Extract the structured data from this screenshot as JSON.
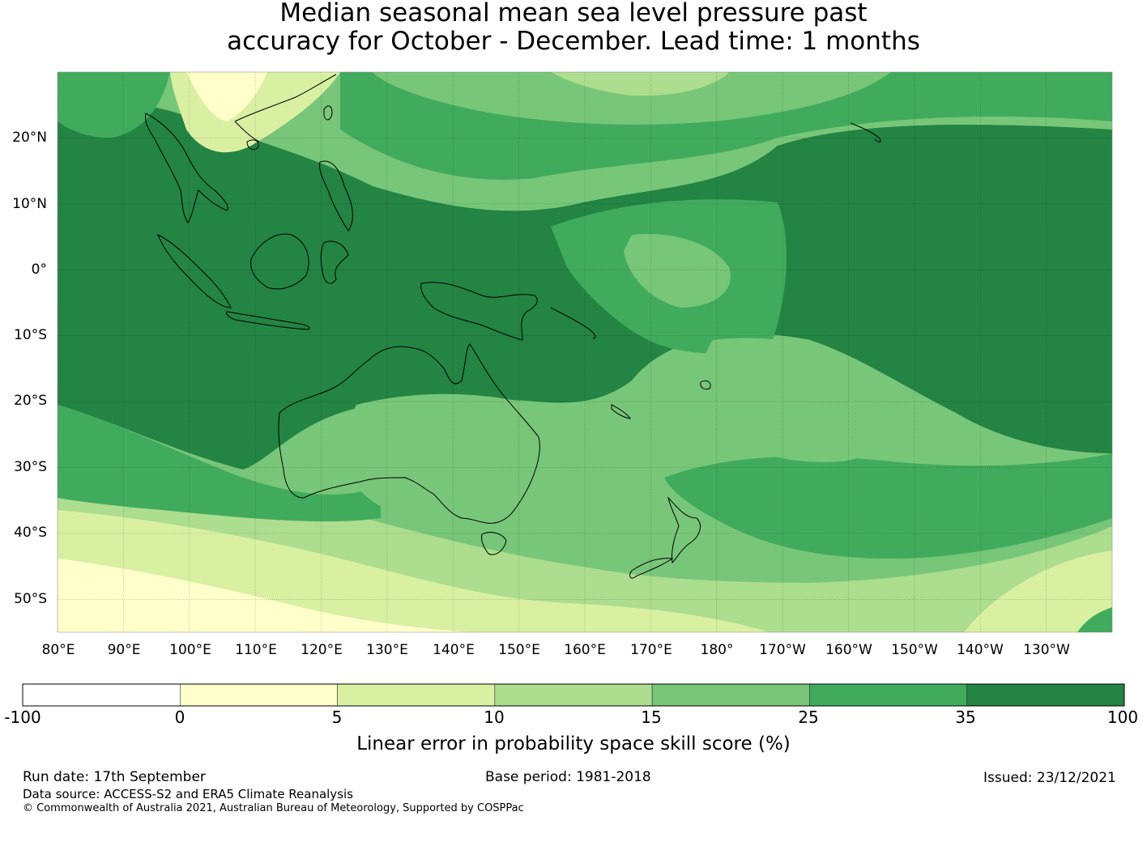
{
  "title": {
    "line1": "Median seasonal mean sea level pressure past",
    "line2": "accuracy for October - December. Lead time: 1 months"
  },
  "map": {
    "lat_labels": [
      "20°N",
      "10°N",
      "0°",
      "10°S",
      "20°S",
      "30°S",
      "40°S",
      "50°S"
    ],
    "lat_values": [
      20,
      10,
      0,
      -10,
      -20,
      -30,
      -40,
      -50
    ],
    "lon_labels": [
      "80°E",
      "90°E",
      "100°E",
      "110°E",
      "120°E",
      "130°E",
      "140°E",
      "150°E",
      "160°E",
      "170°E",
      "180°",
      "170°W",
      "160°W",
      "150°W",
      "140°W",
      "130°W"
    ],
    "lon_values": [
      80,
      90,
      100,
      110,
      120,
      130,
      140,
      150,
      160,
      170,
      180,
      190,
      200,
      210,
      220,
      230
    ],
    "extent": {
      "lon_min": 80,
      "lon_max": 240,
      "lat_min": -55,
      "lat_max": 30
    },
    "regions_description_values": {
      "tropical_west_pacific": 35,
      "australia_interior": 15,
      "southern_ocean": 5,
      "east_equatorial_pacific": 35,
      "tasman_sea": 25,
      "central_pacific_tongue": 15
    }
  },
  "colorbar": {
    "title": "Linear error in probability space skill score (%)",
    "boundaries": [
      "-100",
      "0",
      "5",
      "10",
      "15",
      "25",
      "35",
      "100"
    ],
    "colors": [
      "#ffffff",
      "#ffffcc",
      "#d9f0a3",
      "#addd8e",
      "#78c679",
      "#41ab5d",
      "#238443"
    ]
  },
  "footer": {
    "run_date": "Run date: 17th September",
    "base_period": "Base period: 1981-2018",
    "issued": "Issued: 23/12/2021",
    "data_source": "Data source: ACCESS-S2 and ERA5 Climate Reanalysis",
    "copyright": "© Commonwealth of Australia 2021, Australian Bureau of Meteorology, Supported by COSPPac"
  }
}
